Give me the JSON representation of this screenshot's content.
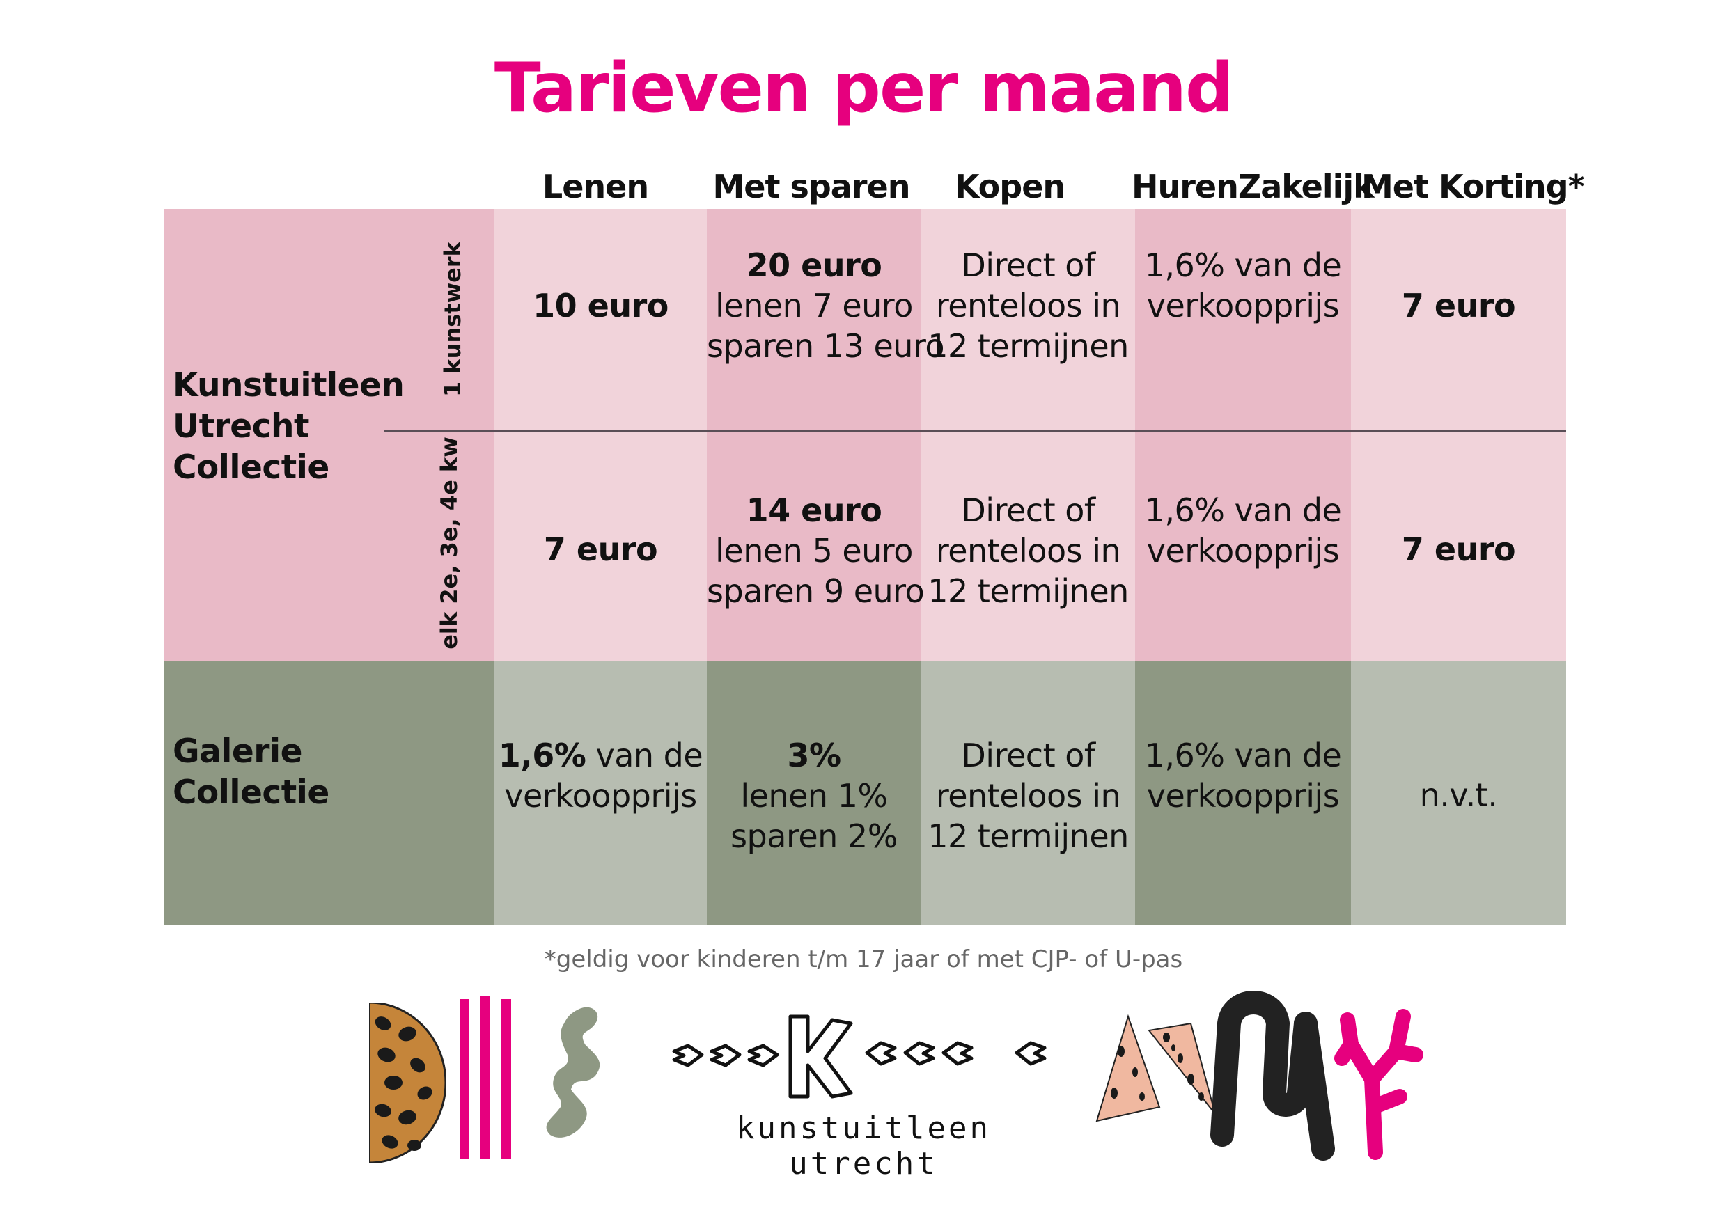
{
  "title": "Tarieven per maand",
  "columns": [
    "Lenen",
    "Met sparen",
    "Kopen",
    "HurenZakelijk",
    "Met Korting*"
  ],
  "groups": {
    "kunstuitleen": {
      "label": [
        "Kunstuitleen",
        "Utrecht",
        "Collectie"
      ],
      "sub1": "1 kunstwerk",
      "sub2": "elk 2e, 3e, 4e kw"
    },
    "galerie": {
      "label": [
        "Galerie",
        "Collectie"
      ]
    }
  },
  "row1": {
    "lenen": "10 euro",
    "sparen": [
      "20 euro",
      "lenen 7 euro",
      "sparen 13 euro"
    ],
    "kopen": [
      "Direct of",
      "renteloos in",
      "12 termijnen"
    ],
    "huren": [
      "1,6% van de",
      "verkoopprijs"
    ],
    "korting": "7 euro"
  },
  "row2": {
    "lenen": "7 euro",
    "sparen": [
      "14 euro",
      "lenen 5 euro",
      "sparen 9 euro"
    ],
    "kopen": [
      "Direct of",
      "renteloos in",
      "12 termijnen"
    ],
    "huren": [
      "1,6% van de",
      "verkoopprijs"
    ],
    "korting": "7 euro"
  },
  "row3": {
    "lenen_bold": "1,6%",
    "lenen_rest": " van de",
    "lenen_line2": "verkoopprijs",
    "sparen": [
      "3%",
      "lenen 1%",
      "sparen 2%"
    ],
    "kopen": [
      "Direct of",
      "renteloos in",
      "12 termijnen"
    ],
    "huren": [
      "1,6% van de",
      "verkoopprijs"
    ],
    "korting": "n.v.t."
  },
  "footnote": "*geldig voor kinderen t/m 17 jaar of met CJP- of U-pas",
  "brand": "kunstuitleen utrecht",
  "colors": {
    "title": "#e6007e",
    "pink_light": "#f1d3da",
    "pink_dark": "#e9bac7",
    "green_light": "#b7bdb1",
    "green_dark": "#8e9883",
    "magenta": "#e6007e"
  }
}
